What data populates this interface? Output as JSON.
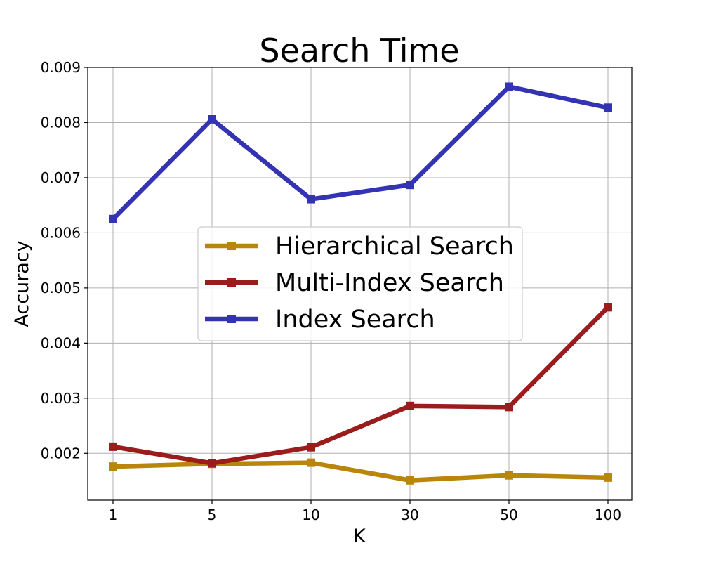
{
  "chart_data": {
    "type": "line",
    "title": "Search Time",
    "xlabel": "K",
    "ylabel": "Accuracy",
    "categories": [
      "1",
      "5",
      "10",
      "30",
      "50",
      "100"
    ],
    "ylim": [
      0.00115,
      0.009
    ],
    "yticks": [
      "0.002",
      "0.003",
      "0.004",
      "0.005",
      "0.006",
      "0.007",
      "0.008",
      "0.009"
    ],
    "grid": true,
    "legend_position": "center",
    "series": [
      {
        "name": "Hierarchical Search",
        "color": "#b8860b",
        "marker": "square",
        "values": [
          0.00176,
          0.00181,
          0.00183,
          0.00151,
          0.0016,
          0.00156
        ]
      },
      {
        "name": "Multi-Index Search",
        "color": "#9b1c1c",
        "marker": "square",
        "values": [
          0.00212,
          0.00182,
          0.00211,
          0.00286,
          0.00284,
          0.00465
        ]
      },
      {
        "name": "Index Search",
        "color": "#3333b3",
        "marker": "square",
        "values": [
          0.00625,
          0.00806,
          0.00661,
          0.00687,
          0.00865,
          0.00827
        ]
      }
    ]
  }
}
